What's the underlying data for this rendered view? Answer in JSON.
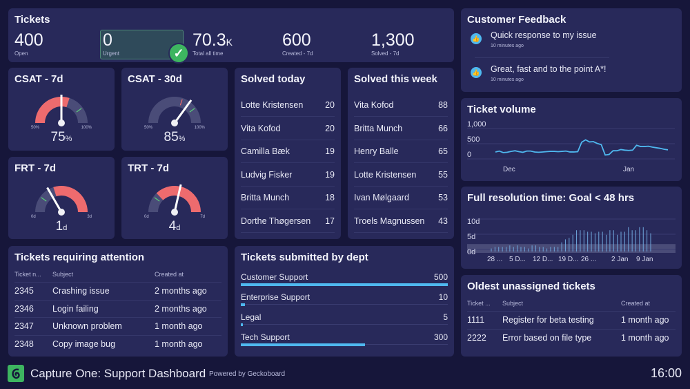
{
  "tickets": {
    "title": "Tickets",
    "stats": [
      {
        "value": "400",
        "unit": "",
        "label": "Open"
      },
      {
        "value": "0",
        "unit": "",
        "label": "Urgent"
      },
      {
        "value": "70.3",
        "unit": "K",
        "label": "Total all time"
      },
      {
        "value": "600",
        "unit": "",
        "label": "Created - 7d"
      },
      {
        "value": "1,300",
        "unit": "",
        "label": "Solved - 7d"
      }
    ],
    "urgent_status_icon": "check-icon"
  },
  "gauges": [
    {
      "title": "CSAT - 7d",
      "min": 50,
      "max": 100,
      "min_label": "50%",
      "max_label": "100%",
      "value": 75,
      "display": "75",
      "unit": "%",
      "red_fill": [
        50,
        80
      ],
      "red_marker": null,
      "green_marker": 90
    },
    {
      "title": "CSAT - 30d",
      "min": 50,
      "max": 100,
      "min_label": "50%",
      "max_label": "100%",
      "value": 85,
      "display": "85",
      "unit": "%",
      "red_fill": null,
      "red_marker": 80,
      "green_marker": 90
    },
    {
      "title": "FRT - 7d",
      "min": 0,
      "max": 3,
      "min_label": "0d",
      "max_label": "3d",
      "value": 1,
      "display": "1",
      "unit": "d",
      "red_fill": [
        1.2,
        3
      ],
      "red_marker": null,
      "green_marker": 0.6
    },
    {
      "title": "TRT - 7d",
      "min": 0,
      "max": 7,
      "min_label": "0d",
      "max_label": "7d",
      "value": 4,
      "display": "4",
      "unit": "d",
      "red_fill": [
        1.8,
        7
      ],
      "red_marker": null,
      "green_marker": 1.4
    }
  ],
  "solved_today": {
    "title": "Solved today",
    "rows": [
      {
        "name": "Lotte Kristensen",
        "count": "20"
      },
      {
        "name": "Vita Kofod",
        "count": "20"
      },
      {
        "name": "Camilla Bæk",
        "count": "19"
      },
      {
        "name": "Ludvig Fisker",
        "count": "19"
      },
      {
        "name": "Britta Munch",
        "count": "18"
      },
      {
        "name": "Dorthe Thøgersen",
        "count": "17"
      }
    ]
  },
  "solved_week": {
    "title": "Solved this week",
    "rows": [
      {
        "name": "Vita Kofod",
        "count": "88"
      },
      {
        "name": "Britta Munch",
        "count": "66"
      },
      {
        "name": "Henry Balle",
        "count": "65"
      },
      {
        "name": "Lotte Kristensen",
        "count": "55"
      },
      {
        "name": "Ivan Mølgaard",
        "count": "53"
      },
      {
        "name": "Troels Magnussen",
        "count": "43"
      }
    ]
  },
  "attention": {
    "title": "Tickets requiring attention",
    "headers": [
      "Ticket n...",
      "Subject",
      "Created at"
    ],
    "rows": [
      [
        "2345",
        "Crashing issue",
        "2 months ago"
      ],
      [
        "2346",
        "Login failing",
        "2 months ago"
      ],
      [
        "2347",
        "Unknown problem",
        "1 month ago"
      ],
      [
        "2348",
        "Copy image bug",
        "1 month ago"
      ]
    ]
  },
  "dept": {
    "title": "Tickets submitted by dept",
    "max": 500,
    "rows": [
      {
        "name": "Customer Support",
        "value": 500
      },
      {
        "name": "Enterprise Support",
        "value": 10
      },
      {
        "name": "Legal",
        "value": 5
      },
      {
        "name": "Tech Support",
        "value": 300
      }
    ]
  },
  "feedback": {
    "title": "Customer Feedback",
    "items": [
      {
        "icon": "thumbs-up-icon",
        "text": "Quick response to my issue",
        "time": "10 minutes ago"
      },
      {
        "icon": "thumbs-up-icon",
        "text": "Great, fast and to the point A*!",
        "time": "10 minutes ago"
      }
    ]
  },
  "oldest": {
    "title": "Oldest unassigned tickets",
    "headers": [
      "Ticket ...",
      "Subject",
      "Created at"
    ],
    "rows": [
      [
        "1111",
        "Register for beta testing",
        "1 month ago"
      ],
      [
        "2222",
        "Error based on file type",
        "1 month ago"
      ]
    ]
  },
  "footer": {
    "title": "Capture One: Support Dashboard",
    "powered": "Powered by Geckoboard",
    "clock": "16:00"
  },
  "colors": {
    "accent": "#4fb8ef",
    "red": "#ee6b6e",
    "green": "#3db560",
    "panel": "#28295a",
    "background": "#16163a"
  },
  "chart_data": [
    {
      "type": "line",
      "title": "Ticket volume",
      "ylim": [
        0,
        1000
      ],
      "yticks": [
        "0",
        "500",
        "1,000"
      ],
      "xticks": [
        "Dec",
        "Jan"
      ],
      "grid": true,
      "values": [
        160,
        190,
        140,
        150,
        180,
        200,
        170,
        150,
        190,
        190,
        160,
        150,
        160,
        170,
        180,
        180,
        170,
        180,
        190,
        160,
        160,
        170,
        480,
        560,
        490,
        500,
        440,
        400,
        60,
        80,
        200,
        200,
        240,
        220,
        210,
        220,
        380,
        340,
        340,
        350,
        320,
        300,
        280,
        250,
        230
      ]
    },
    {
      "type": "bar",
      "title": "Full resolution time: Goal < 48 hrs",
      "ylim": [
        0,
        10
      ],
      "yticks": [
        "0d",
        "5d",
        "10d"
      ],
      "xticks": [
        "28 ...",
        "5 D...",
        "12 D...",
        "19 D...",
        "26 ...",
        "2 Jan",
        "9 Jan"
      ],
      "grid": true,
      "goal_band": [
        0,
        2
      ],
      "values": [
        1,
        1.5,
        1.5,
        1.5,
        1.5,
        2,
        1.5,
        2,
        1.5,
        1.5,
        1,
        2,
        2,
        1.5,
        1.5,
        1,
        1.5,
        1.5,
        1.5,
        3,
        4,
        4.5,
        5.5,
        7,
        7,
        7,
        6.5,
        6.5,
        6,
        6.5,
        6.5,
        5.5,
        7,
        7,
        5.5,
        6.5,
        6.5,
        8,
        7,
        7,
        8,
        8,
        7,
        6
      ]
    }
  ]
}
